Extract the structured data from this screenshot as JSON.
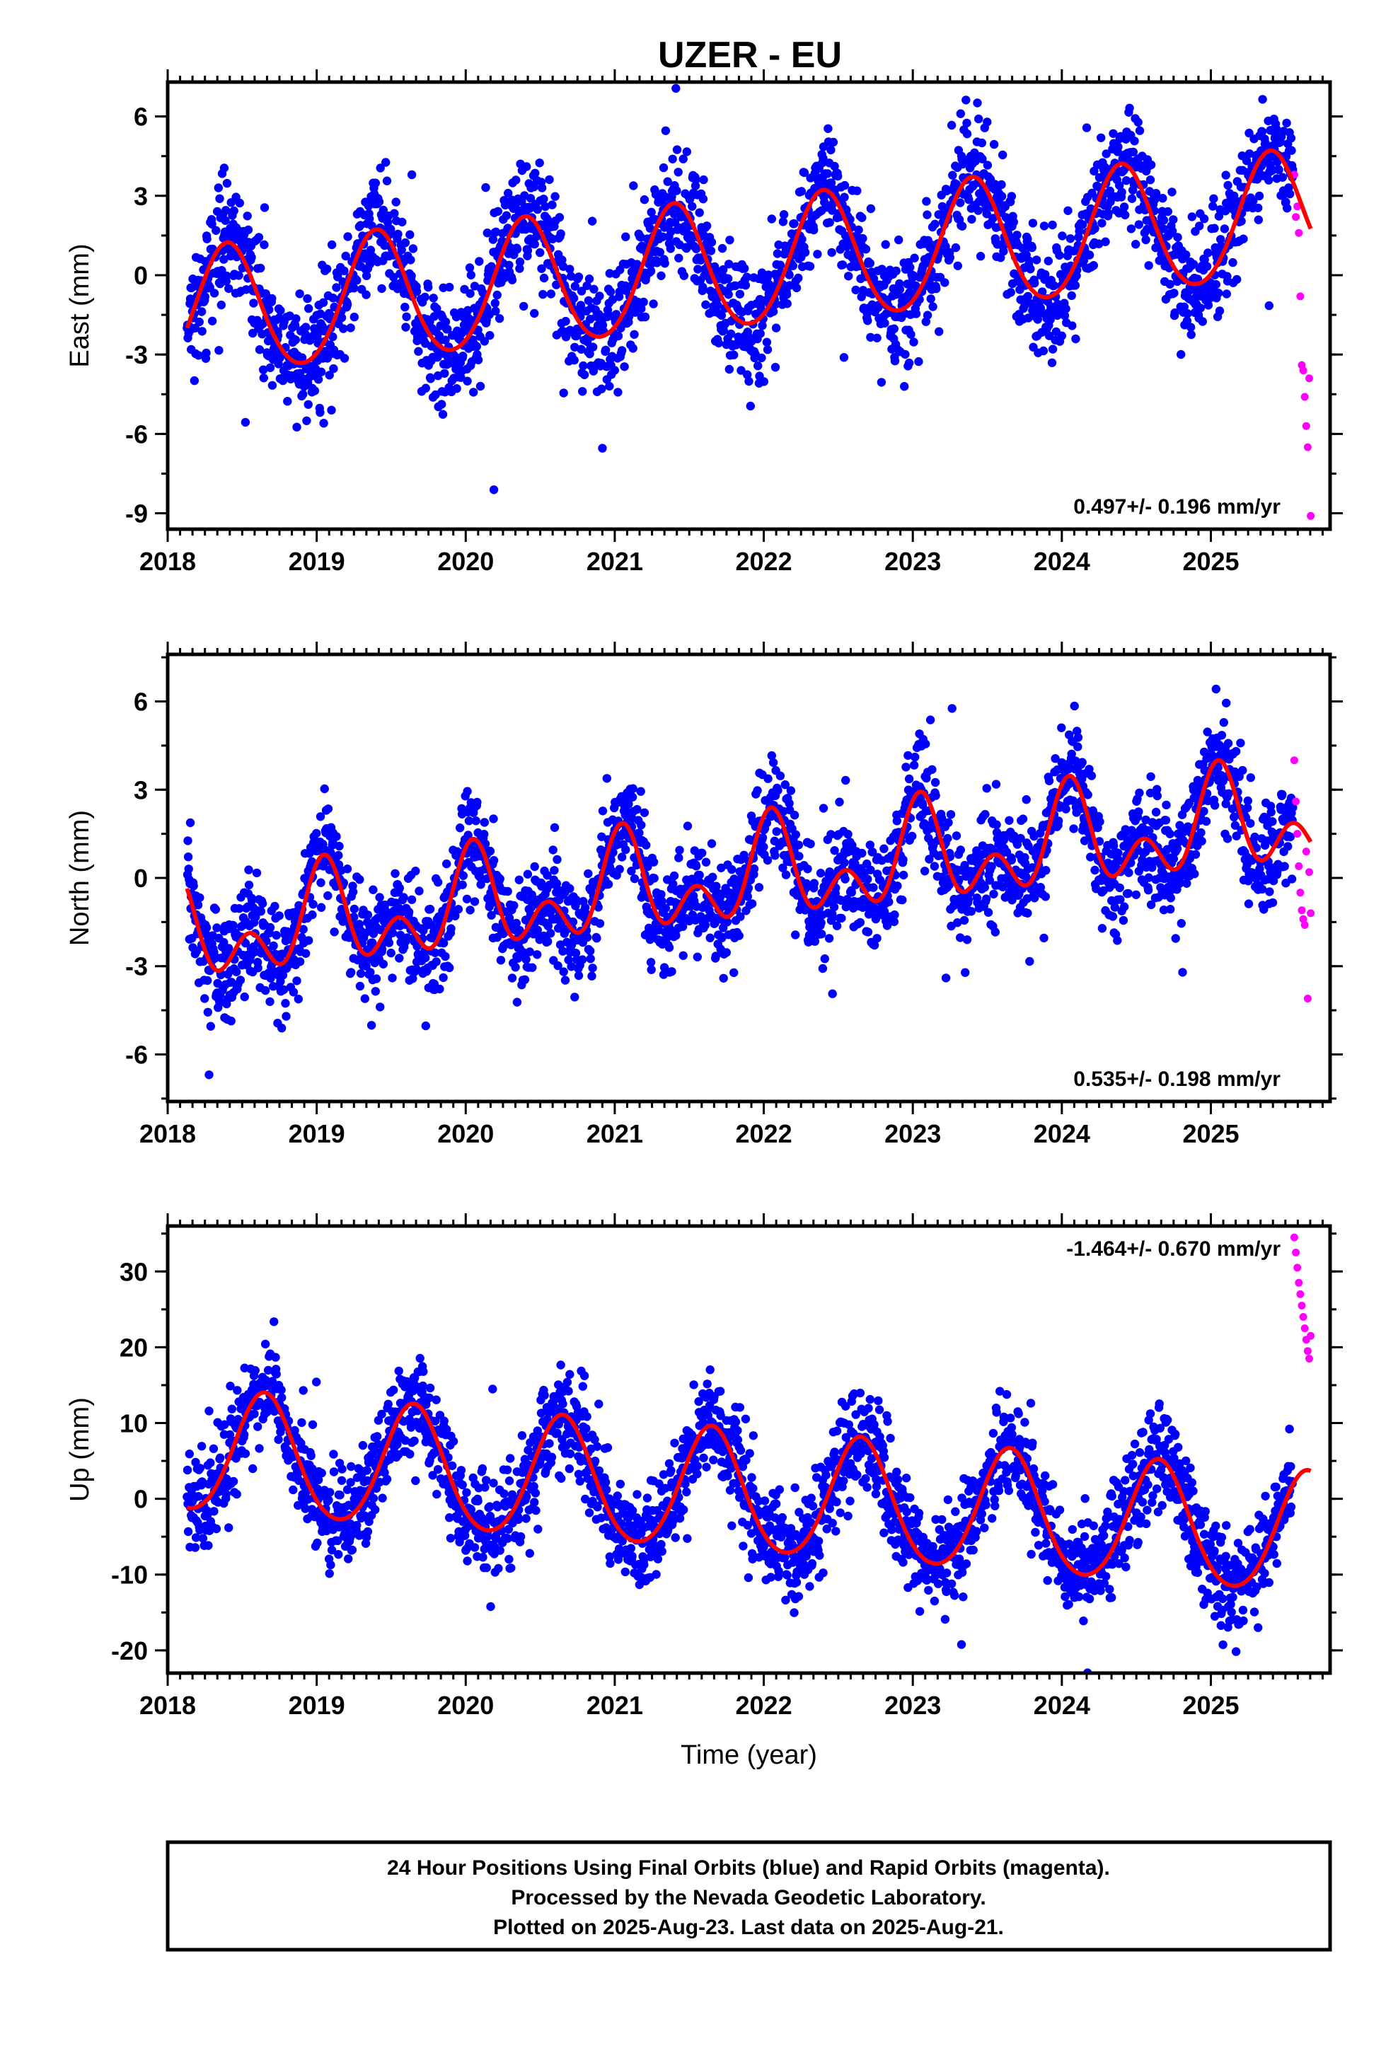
{
  "title": "UZER - EU",
  "footer": {
    "lines": [
      "24 Hour Positions Using Final Orbits (blue) and Rapid Orbits (magenta).",
      "Processed by the Nevada Geodetic Laboratory.",
      "Plotted on 2025-Aug-23. Last data on 2025-Aug-21."
    ]
  },
  "colors": {
    "final": "#0000ff",
    "rapid": "#ff00ff",
    "model": "#ff0000",
    "frame": "#000000"
  },
  "chart_data": [
    {
      "type": "scatter",
      "component": "east",
      "ylabel": "East (mm)",
      "xlabel": "",
      "xlim": [
        2018.0,
        2025.8
      ],
      "ylim": [
        -9.6,
        7.3
      ],
      "yticks": [
        -9,
        -6,
        -3,
        0,
        3,
        6
      ],
      "xticks": [
        2018,
        2019,
        2020,
        2021,
        2022,
        2023,
        2024,
        2025
      ],
      "rate_text": "0.497+/- 0.196 mm/yr",
      "rate_position": "bottom-right",
      "series": [
        {
          "kind": "final",
          "start": 2018.13,
          "end": 2025.55,
          "trend_start": -1.5,
          "slope": 0.497,
          "annual_amp": 2.4,
          "annual_phase_peak": 0.4,
          "semiannual_amp": 0.2,
          "scatter_sd": 1.1
        },
        {
          "kind": "rapid",
          "points": [
            [
              2025.56,
              3.8
            ],
            [
              2025.57,
              2.2
            ],
            [
              2025.58,
              2.6
            ],
            [
              2025.59,
              1.6
            ],
            [
              2025.6,
              -0.8
            ],
            [
              2025.61,
              -3.4
            ],
            [
              2025.62,
              -3.6
            ],
            [
              2025.63,
              -4.6
            ],
            [
              2025.64,
              -5.7
            ],
            [
              2025.65,
              -6.5
            ],
            [
              2025.66,
              -3.9
            ],
            [
              2025.67,
              -9.1
            ]
          ]
        }
      ]
    },
    {
      "type": "scatter",
      "component": "north",
      "ylabel": "North (mm)",
      "xlabel": "",
      "xlim": [
        2018.0,
        2025.8
      ],
      "ylim": [
        -7.6,
        7.6
      ],
      "yticks": [
        -6,
        -3,
        0,
        3,
        6
      ],
      "xticks": [
        2018,
        2019,
        2020,
        2021,
        2022,
        2023,
        2024,
        2025
      ],
      "rate_text": "0.535+/- 0.198 mm/yr",
      "rate_position": "bottom-right",
      "series": [
        {
          "kind": "final",
          "start": 2018.13,
          "end": 2025.55,
          "trend_start": -2.0,
          "slope": 0.535,
          "annual_amp": 1.2,
          "annual_phase_peak": 0.05,
          "semiannual_amp": 1.1,
          "scatter_sd": 0.9
        },
        {
          "kind": "rapid",
          "points": [
            [
              2025.56,
              4.0
            ],
            [
              2025.57,
              2.6
            ],
            [
              2025.58,
              1.5
            ],
            [
              2025.59,
              0.4
            ],
            [
              2025.6,
              -0.5
            ],
            [
              2025.61,
              -1.1
            ],
            [
              2025.62,
              -1.4
            ],
            [
              2025.63,
              -1.6
            ],
            [
              2025.64,
              0.9
            ],
            [
              2025.65,
              -4.1
            ],
            [
              2025.66,
              0.2
            ],
            [
              2025.67,
              -1.2
            ]
          ]
        }
      ]
    },
    {
      "type": "scatter",
      "component": "up",
      "ylabel": "Up (mm)",
      "xlabel": "Time (year)",
      "xlim": [
        2018.0,
        2025.8
      ],
      "ylim": [
        -23.0,
        36.0
      ],
      "yticks": [
        -20,
        -10,
        0,
        10,
        20,
        30
      ],
      "xticks": [
        2018,
        2019,
        2020,
        2021,
        2022,
        2023,
        2024,
        2025
      ],
      "rate_text": "-1.464+/- 0.670 mm/yr",
      "rate_position": "top-right",
      "series": [
        {
          "kind": "final",
          "start": 2018.13,
          "end": 2025.55,
          "trend_start": 6.0,
          "slope": -1.464,
          "annual_amp": 8.0,
          "annual_phase_peak": 0.65,
          "semiannual_amp": 0.8,
          "scatter_sd": 3.3
        },
        {
          "kind": "rapid",
          "points": [
            [
              2025.56,
              34.5
            ],
            [
              2025.57,
              32.5
            ],
            [
              2025.58,
              30.5
            ],
            [
              2025.59,
              28.5
            ],
            [
              2025.6,
              27.0
            ],
            [
              2025.61,
              25.5
            ],
            [
              2025.62,
              24.0
            ],
            [
              2025.63,
              22.5
            ],
            [
              2025.64,
              21.0
            ],
            [
              2025.65,
              19.5
            ],
            [
              2025.66,
              18.5
            ],
            [
              2025.67,
              21.5
            ]
          ]
        }
      ]
    }
  ]
}
